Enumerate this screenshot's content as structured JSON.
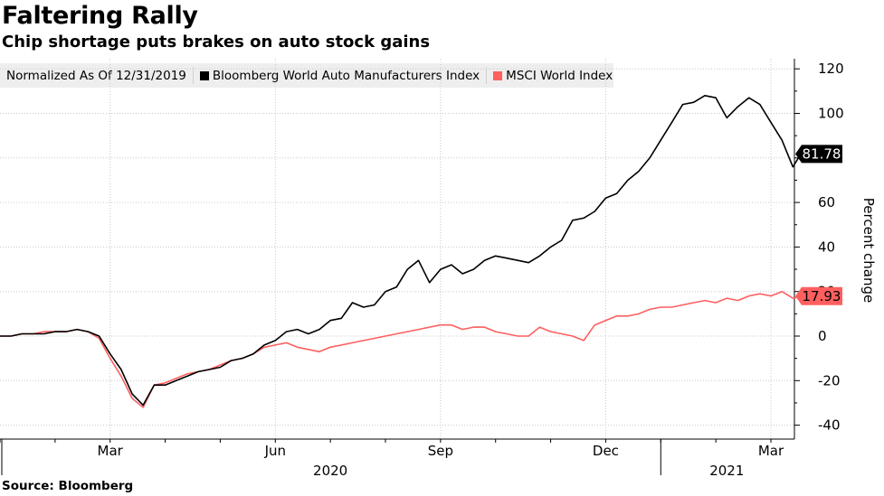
{
  "title": "Faltering Rally",
  "subtitle": "Chip shortage puts brakes on auto stock gains",
  "source": "Source: Bloomberg",
  "chart_data": {
    "type": "line",
    "legend": {
      "note": "Normalized As Of 12/31/2019",
      "entries": [
        "Bloomberg World Auto Manufacturers Index",
        "MSCI World Index"
      ]
    },
    "ylabel": "Percent change",
    "ylim": [
      -45,
      125
    ],
    "yticks": [
      120,
      100,
      80,
      60,
      40,
      20,
      0,
      -20,
      -40
    ],
    "x_month_ticks": [
      "Mar",
      "Jun",
      "Sep",
      "Dec",
      "Mar"
    ],
    "x_year_labels": [
      "2020",
      "2021"
    ],
    "series": [
      {
        "name": "Bloomberg World Auto Manufacturers Index",
        "color": "#000000",
        "last_value": "81.78",
        "x": [
          0.0,
          0.2,
          0.4,
          0.6,
          0.8,
          1.0,
          1.2,
          1.4,
          1.6,
          1.8,
          2.0,
          2.2,
          2.4,
          2.6,
          2.8,
          3.0,
          3.2,
          3.4,
          3.6,
          3.8,
          4.0,
          4.2,
          4.4,
          4.6,
          4.8,
          5.0,
          5.2,
          5.4,
          5.6,
          5.8,
          6.0,
          6.2,
          6.4,
          6.6,
          6.8,
          7.0,
          7.2,
          7.4,
          7.6,
          7.8,
          8.0,
          8.2,
          8.4,
          8.6,
          8.8,
          9.0,
          9.2,
          9.4,
          9.6,
          9.8,
          10.0,
          10.2,
          10.4,
          10.6,
          10.8,
          11.0,
          11.2,
          11.4,
          11.6,
          11.8,
          12.0,
          12.2,
          12.4,
          12.6,
          12.8,
          13.0,
          13.2,
          13.4,
          13.6,
          13.8,
          14.0,
          14.2,
          14.4,
          14.6,
          14.8
        ],
        "values": [
          0,
          0,
          1,
          1,
          1,
          2,
          2,
          3,
          2,
          0,
          -8,
          -15,
          -26,
          -31,
          -22,
          -22,
          -20,
          -18,
          -16,
          -15,
          -14,
          -11,
          -10,
          -8,
          -4,
          -2,
          2,
          3,
          1,
          3,
          7,
          8,
          15,
          13,
          14,
          20,
          22,
          30,
          34,
          24,
          30,
          32,
          28,
          30,
          34,
          36,
          35,
          34,
          33,
          36,
          40,
          43,
          52,
          53,
          56,
          62,
          64,
          70,
          74,
          80,
          88,
          96,
          104,
          105,
          108,
          107,
          98,
          103,
          107,
          104,
          96,
          88,
          76,
          84,
          81.78
        ]
      },
      {
        "name": "MSCI World Index",
        "color": "#ff5f5f",
        "last_value": "17.93",
        "x": [
          0.0,
          0.2,
          0.4,
          0.6,
          0.8,
          1.0,
          1.2,
          1.4,
          1.6,
          1.8,
          2.0,
          2.2,
          2.4,
          2.6,
          2.8,
          3.0,
          3.2,
          3.4,
          3.6,
          3.8,
          4.0,
          4.2,
          4.4,
          4.6,
          4.8,
          5.0,
          5.2,
          5.4,
          5.6,
          5.8,
          6.0,
          6.2,
          6.4,
          6.6,
          6.8,
          7.0,
          7.2,
          7.4,
          7.6,
          7.8,
          8.0,
          8.2,
          8.4,
          8.6,
          8.8,
          9.0,
          9.2,
          9.4,
          9.6,
          9.8,
          10.0,
          10.2,
          10.4,
          10.6,
          10.8,
          11.0,
          11.2,
          11.4,
          11.6,
          11.8,
          12.0,
          12.2,
          12.4,
          12.6,
          12.8,
          13.0,
          13.2,
          13.4,
          13.6,
          13.8,
          14.0,
          14.2,
          14.4,
          14.6,
          14.8
        ],
        "values": [
          0,
          0,
          1,
          1,
          2,
          2,
          2,
          3,
          2,
          -1,
          -10,
          -18,
          -28,
          -32,
          -22,
          -21,
          -19,
          -17,
          -16,
          -15,
          -13,
          -11,
          -10,
          -8,
          -5,
          -4,
          -3,
          -5,
          -6,
          -7,
          -5,
          -4,
          -3,
          -2,
          -1,
          0,
          1,
          2,
          3,
          4,
          5,
          5,
          3,
          4,
          4,
          2,
          1,
          0,
          0,
          4,
          2,
          1,
          0,
          -2,
          5,
          7,
          9,
          9,
          10,
          12,
          13,
          13,
          14,
          15,
          16,
          15,
          17,
          16,
          18,
          19,
          18,
          20,
          17,
          18,
          17.93
        ]
      }
    ]
  }
}
